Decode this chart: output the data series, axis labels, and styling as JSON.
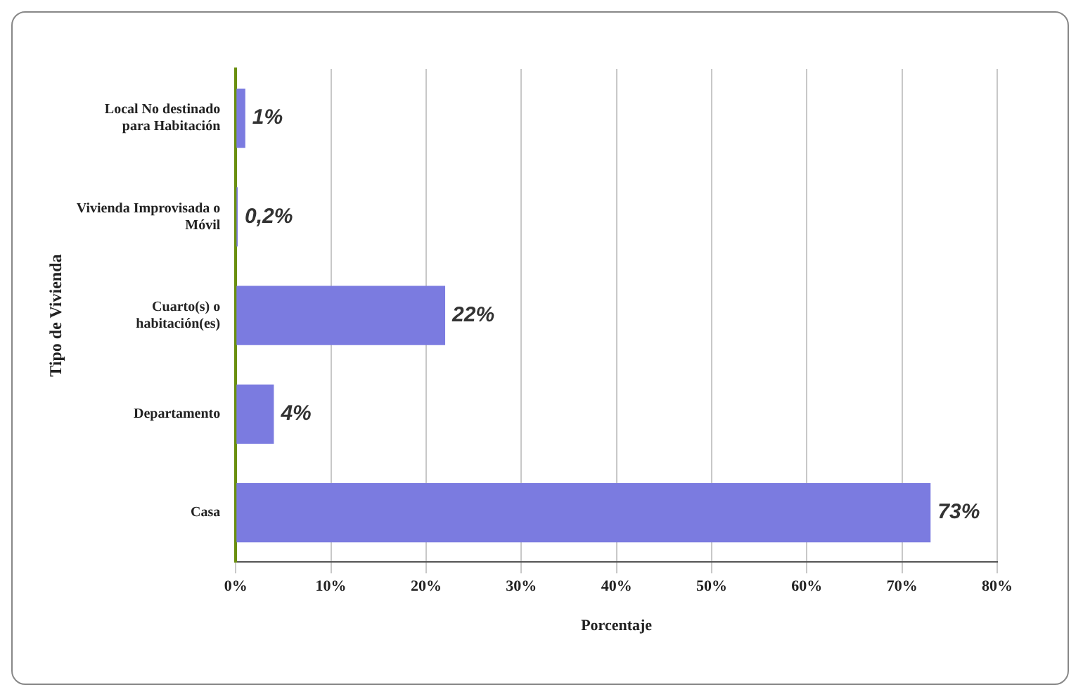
{
  "chart_data": {
    "type": "bar",
    "orientation": "horizontal",
    "xlabel": "Porcentaje",
    "ylabel": "Tipo de Vivienda",
    "categories": [
      "Local No destinado para Habitación",
      "Vivienda Improvisada o Móvil",
      "Cuarto(s) o habitación(es)",
      "Departamento",
      "Casa"
    ],
    "values": [
      1,
      0.2,
      22,
      4,
      73
    ],
    "value_labels": [
      "1%",
      "0,2%",
      "22%",
      "4%",
      "73%"
    ],
    "color": "#7b7be0",
    "xlim": [
      0,
      80
    ],
    "xticks": [
      {
        "value": 0,
        "label": "0%"
      },
      {
        "value": 10,
        "label": "10%"
      },
      {
        "value": 20,
        "label": "20%"
      },
      {
        "value": 30,
        "label": "30%"
      },
      {
        "value": 40,
        "label": "40%"
      },
      {
        "value": 50,
        "label": "50%"
      },
      {
        "value": 60,
        "label": "60%"
      },
      {
        "value": 70,
        "label": "70%"
      },
      {
        "value": 80,
        "label": "80%"
      }
    ],
    "grid": "x"
  }
}
